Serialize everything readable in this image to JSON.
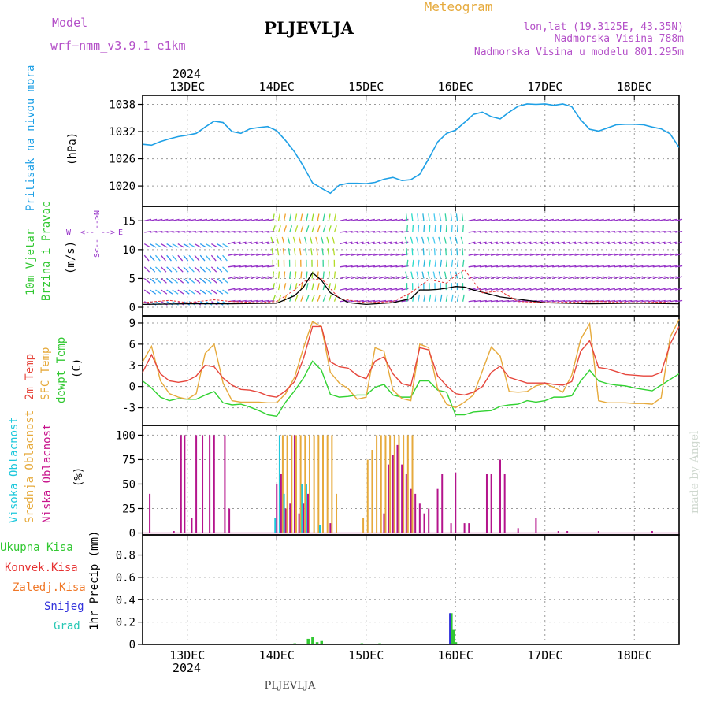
{
  "header": {
    "model_label": "Model",
    "model_name": "wrf−nmm_v3.9.1  e1km",
    "station": "PLJEVLJA",
    "product": "Meteogram",
    "lonlat": "lon,lat (19.3125E, 43.35N)",
    "elevation": "Nadmorska Visina 788m",
    "model_elevation": "Nadmorska Visina u modelu 801.295m",
    "year_top": "2024",
    "year_bottom": "2024",
    "footer_station": "PLJEVLJA",
    "credit": "made by Angel"
  },
  "colors": {
    "pressure": "#1ea0e6",
    "temp2m": "#e6463c",
    "sfc_temp": "#e6aa3c",
    "dewpt": "#32d232",
    "high_cloud": "#1ec8dc",
    "mid_cloud": "#e6aa3c",
    "low_cloud": "#b4148c",
    "total_precip": "#32c832",
    "conv_precip": "#e63232",
    "frz_precip": "#f07828",
    "snow": "#3232dc",
    "hail": "#28c8b4",
    "wind_legend": "#9632c8",
    "wind_label": "#32c832"
  },
  "x_ticks": [
    "13DEC",
    "14DEC",
    "15DEC",
    "16DEC",
    "17DEC",
    "18DEC"
  ],
  "panels": {
    "pressure": {
      "label": "Pritisak na nivou mora",
      "unit": "(hPa)"
    },
    "wind": {
      "label1": "10m Vjetar",
      "label2": "Brzina i Pravac",
      "unit": "(m/s)",
      "compass_w": "W",
      "compass_e": "E",
      "compass_n": "N",
      "compass_s": "S"
    },
    "temp": {
      "label1": "2m Temp",
      "label2": "SFC Temp",
      "label3": "dewpt Temp",
      "unit": "(C)"
    },
    "cloud": {
      "label1": "Visoka Oblacnost",
      "label2": "Srednja Oblacnost",
      "label3": "Niska Oblacnost",
      "unit": "(%)"
    },
    "precip": {
      "label": "1hr Precip (mm)",
      "legend": [
        "Ukupna Kisa",
        "Konvek.Kisa",
        "Zaledj.Kisa",
        "Snijeg",
        "Grad"
      ]
    }
  },
  "chart_data": [
    {
      "type": "line",
      "name": "pressure",
      "ylim": [
        1015.5,
        1040
      ],
      "yticks": [
        1020,
        1026,
        1032,
        1038
      ],
      "x": [
        12.5,
        12.6,
        12.7,
        12.8,
        12.9,
        13.0,
        13.1,
        13.2,
        13.3,
        13.4,
        13.5,
        13.6,
        13.7,
        13.8,
        13.9,
        14.0,
        14.1,
        14.2,
        14.3,
        14.4,
        14.5,
        14.6,
        14.7,
        14.8,
        14.9,
        15.0,
        15.1,
        15.2,
        15.3,
        15.4,
        15.5,
        15.6,
        15.7,
        15.8,
        15.9,
        16.0,
        16.1,
        16.2,
        16.3,
        16.4,
        16.5,
        16.6,
        16.7,
        16.8,
        16.9,
        17.0,
        17.1,
        17.2,
        17.3,
        17.4,
        17.5,
        17.6,
        17.7,
        17.8,
        17.9,
        18.0,
        18.1,
        18.2,
        18.3,
        18.4,
        18.5
      ],
      "values": [
        1029.2,
        1029,
        1029.8,
        1030.4,
        1030.9,
        1031.2,
        1031.6,
        1033,
        1034.3,
        1034,
        1032,
        1031.6,
        1032.6,
        1032.9,
        1033.1,
        1032.2,
        1030,
        1027.5,
        1024.3,
        1020.7,
        1019.5,
        1018.4,
        1020.2,
        1020.6,
        1020.6,
        1020.5,
        1020.8,
        1021.5,
        1021.9,
        1021.2,
        1021.4,
        1022.6,
        1026,
        1029.7,
        1031.6,
        1032.3,
        1034,
        1035.8,
        1036.3,
        1035.3,
        1034.8,
        1036.3,
        1037.6,
        1038.1,
        1038,
        1038.1,
        1037.8,
        1038.1,
        1037.5,
        1034.6,
        1032.5,
        1032.1,
        1032.8,
        1033.5,
        1033.6,
        1033.6,
        1033.5,
        1033,
        1032.6,
        1031.5,
        1028.5
      ]
    },
    {
      "type": "line",
      "name": "wind",
      "ylim": [
        -1.5,
        17.5
      ],
      "yticks": [
        0,
        5,
        10,
        15
      ],
      "series": [
        {
          "key": "speed",
          "x": [
            12.5,
            13,
            13.5,
            14,
            14.2,
            14.3,
            14.4,
            14.5,
            14.6,
            14.8,
            15,
            15.3,
            15.5,
            15.6,
            15.7,
            15.8,
            15.9,
            16,
            16.1,
            16.2,
            16.5,
            17,
            17.5,
            18,
            18.5
          ],
          "values": [
            0.5,
            0.6,
            0.6,
            0.7,
            2,
            3.5,
            6,
            4.7,
            2.5,
            0.8,
            0.5,
            0.8,
            1.5,
            3,
            3,
            3.1,
            3.3,
            3.6,
            3.5,
            3,
            1.8,
            0.8,
            0.6,
            0.7,
            0.6
          ]
        },
        {
          "key": "gust",
          "x": [
            12.5,
            12.8,
            13,
            13.3,
            13.5,
            13.8,
            14,
            14.2,
            14.3,
            14.5,
            14.7,
            15,
            15.3,
            15.5,
            15.7,
            15.9,
            16,
            16.1,
            16.3,
            16.5,
            16.7,
            17,
            17.3,
            17.6,
            18,
            18.3,
            18.5
          ],
          "values": [
            0.8,
            1.2,
            0.8,
            1.3,
            1,
            0.8,
            1,
            3,
            4.5,
            5,
            1.5,
            0.8,
            1,
            2.5,
            4.8,
            4.2,
            5.5,
            6.5,
            2.5,
            2.8,
            1,
            0.8,
            0.9,
            1,
            0.8,
            0.9,
            0.7
          ]
        }
      ]
    },
    {
      "type": "line",
      "name": "temperature",
      "ylim": [
        -5.5,
        10
      ],
      "yticks": [
        -3,
        0,
        3,
        6,
        9
      ],
      "x": [
        12.5,
        12.6,
        12.7,
        12.8,
        12.9,
        13.0,
        13.1,
        13.2,
        13.3,
        13.4,
        13.5,
        13.6,
        13.7,
        13.8,
        13.9,
        14.0,
        14.1,
        14.2,
        14.3,
        14.4,
        14.5,
        14.6,
        14.7,
        14.8,
        14.9,
        15.0,
        15.1,
        15.2,
        15.3,
        15.4,
        15.5,
        15.6,
        15.7,
        15.8,
        15.9,
        16.0,
        16.1,
        16.2,
        16.3,
        16.4,
        16.5,
        16.6,
        16.7,
        16.8,
        16.9,
        17.0,
        17.1,
        17.2,
        17.3,
        17.4,
        17.5,
        17.6,
        17.7,
        17.8,
        17.9,
        18.0,
        18.1,
        18.2,
        18.3,
        18.4,
        18.5
      ],
      "series": [
        {
          "key": "t2m",
          "values": [
            2,
            4.5,
            1.8,
            0.8,
            0.6,
            0.8,
            1.5,
            3,
            2.8,
            1.2,
            0.2,
            -0.4,
            -0.5,
            -0.8,
            -1.3,
            -1.5,
            -0.6,
            0.7,
            4,
            8.5,
            8.5,
            3.5,
            2.8,
            2.6,
            1.6,
            1.1,
            3.6,
            4.2,
            1.8,
            0.4,
            0.1,
            5.5,
            5.2,
            1.5,
            0.1,
            -1,
            -1.2,
            -0.8,
            0,
            2,
            2.9,
            1.3,
            0.9,
            0.5,
            0.5,
            0.5,
            0.3,
            0.2,
            0.7,
            5,
            6.5,
            2.7,
            2.5,
            2.1,
            1.7,
            1.6,
            1.5,
            1.5,
            2,
            6,
            8.5
          ]
        },
        {
          "key": "sfc",
          "values": [
            3.5,
            5.7,
            0.8,
            -1,
            -1.5,
            -1.8,
            -1,
            4.7,
            6,
            0.5,
            -2,
            -2.2,
            -2.2,
            -2.2,
            -2.3,
            -2.3,
            -1,
            1.3,
            5.5,
            9.2,
            8.5,
            2,
            0.5,
            -0.3,
            -1.8,
            -1.5,
            5.5,
            5,
            -0.5,
            -1.7,
            -2,
            6,
            5.5,
            -0.3,
            -2.5,
            -3,
            -2.2,
            -1.2,
            2.2,
            5.6,
            4.3,
            -0.7,
            -0.8,
            -0.7,
            0.1,
            0.4,
            -0.1,
            -0.8,
            1.6,
            6.7,
            8.9,
            -2,
            -2.3,
            -2.3,
            -2.3,
            -2.4,
            -2.4,
            -2.5,
            -1.6,
            7,
            9.5
          ]
        },
        {
          "key": "dewpt",
          "values": [
            0.8,
            -0.2,
            -1.5,
            -2,
            -1.7,
            -1.8,
            -1.8,
            -1.2,
            -0.7,
            -2.3,
            -2.6,
            -2.5,
            -2.9,
            -3.4,
            -4,
            -4.2,
            -2.2,
            -0.6,
            1.2,
            3.6,
            2.3,
            -1.1,
            -1.5,
            -1.4,
            -1.2,
            -1.2,
            -0.1,
            0.3,
            -1.2,
            -1.5,
            -1.5,
            0.8,
            0.8,
            -0.5,
            -0.8,
            -4,
            -4,
            -3.6,
            -3.5,
            -3.4,
            -2.8,
            -2.6,
            -2.5,
            -2,
            -2.2,
            -2,
            -1.5,
            -1.5,
            -1.3,
            0.8,
            2.3,
            0.8,
            0.4,
            0.2,
            0.1,
            -0.2,
            -0.4,
            -0.6,
            0.2,
            1,
            1.8
          ]
        }
      ]
    },
    {
      "type": "bar",
      "name": "cloud",
      "ylim": [
        -2,
        110
      ],
      "yticks": [
        0,
        25,
        50,
        75,
        100
      ],
      "series": [
        {
          "key": "low",
          "x": [
            12.58,
            12.85,
            12.93,
            12.97,
            13.05,
            13.1,
            13.17,
            13.25,
            13.3,
            13.42,
            13.47,
            14.0,
            14.05,
            14.1,
            14.15,
            14.2,
            14.25,
            14.3,
            14.35,
            14.6,
            15.2,
            15.25,
            15.3,
            15.35,
            15.4,
            15.45,
            15.5,
            15.55,
            15.6,
            15.65,
            15.7,
            15.8,
            15.85,
            15.95,
            16.0,
            16.1,
            16.15,
            16.35,
            16.4,
            16.5,
            16.55,
            16.7,
            16.9,
            17.15,
            17.25,
            17.6,
            18.2
          ],
          "values": [
            40,
            2,
            100,
            100,
            15,
            100,
            100,
            100,
            100,
            100,
            25,
            50,
            60,
            25,
            30,
            100,
            20,
            30,
            40,
            10,
            20,
            70,
            80,
            90,
            70,
            60,
            45,
            40,
            30,
            20,
            25,
            45,
            60,
            10,
            62,
            10,
            10,
            60,
            60,
            75,
            60,
            5,
            15,
            2,
            2,
            2,
            2
          ]
        },
        {
          "key": "mid",
          "x": [
            14.05,
            14.1,
            14.15,
            14.2,
            14.25,
            14.3,
            14.35,
            14.4,
            14.45,
            14.5,
            14.55,
            14.6,
            14.65,
            14.95,
            15.0,
            15.05,
            15.1,
            15.15,
            15.2,
            15.25,
            15.3,
            15.35,
            15.4,
            15.45,
            15.5
          ],
          "values": [
            100,
            100,
            100,
            100,
            100,
            100,
            100,
            100,
            100,
            100,
            100,
            100,
            40,
            15,
            75,
            85,
            100,
            100,
            100,
            100,
            100,
            100,
            100,
            100,
            100
          ]
        },
        {
          "key": "high",
          "x": [
            14.0,
            14.05,
            14.1,
            14.3,
            14.35,
            14.5
          ],
          "values": [
            15,
            100,
            40,
            50,
            50,
            8
          ]
        }
      ]
    },
    {
      "type": "bar",
      "name": "precip",
      "ylim": [
        0,
        0.98
      ],
      "yticks": [
        0,
        0.2,
        0.4,
        0.6,
        0.8
      ],
      "series": [
        {
          "key": "total",
          "x": [
            14.2,
            14.35,
            14.4,
            14.45,
            14.5,
            14.95,
            15.15,
            15.95,
            15.98,
            16.0
          ],
          "values": [
            0.01,
            0.05,
            0.07,
            0.02,
            0.03,
            0.01,
            0.01,
            0.28,
            0.13,
            0.02
          ]
        },
        {
          "key": "snow",
          "x": [
            15.95
          ],
          "values": [
            0.28
          ]
        }
      ]
    }
  ]
}
